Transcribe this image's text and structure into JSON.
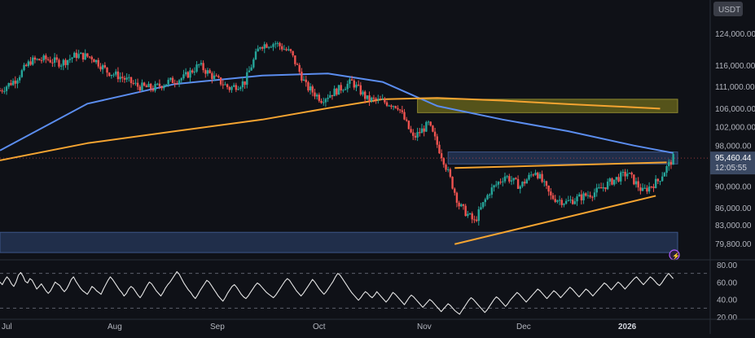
{
  "currency_label": "USDT",
  "colors": {
    "background": "#0f1117",
    "up": "#26a69a",
    "down": "#ef5350",
    "ma_fast": "#5b8def",
    "ma_slow": "#f5a431",
    "trendline": "#f5a431",
    "zone_blue": "#2a3f66",
    "zone_yellow": "#6e6a1c",
    "rsi_line": "#e6e6e6",
    "text": "#b2b5be",
    "badge_bg": "#3a3d47"
  },
  "chart_data": [
    {
      "type": "candlestick",
      "title": "",
      "x_labels": [
        "Jul",
        "Aug",
        "Sep",
        "Oct",
        "Nov",
        "Dec",
        "2026"
      ],
      "y_ticks": [
        "124,000.00",
        "116,000.00",
        "111,000.00",
        "106,000.00",
        "102,000.00",
        "98,000.00",
        "90,000.00",
        "86,000.00",
        "83,000.00",
        "79,800.00"
      ],
      "y_tick_values": [
        124000,
        116000,
        111000,
        106000,
        102000,
        98000,
        90000,
        86000,
        83000,
        79800
      ],
      "y_scale": "log",
      "current_price_label": "95,460.44",
      "current_price": 95460.44,
      "countdown_label": "12:05:55",
      "approx_close_path": [
        [
          0,
          110000
        ],
        [
          7,
          112500
        ],
        [
          14,
          117000
        ],
        [
          21,
          117500
        ],
        [
          28,
          116500
        ],
        [
          35,
          118500
        ],
        [
          42,
          118000
        ],
        [
          49,
          114500
        ],
        [
          56,
          113000
        ],
        [
          63,
          111000
        ],
        [
          70,
          110500
        ],
        [
          77,
          112000
        ],
        [
          84,
          113000
        ],
        [
          91,
          116000
        ],
        [
          98,
          113000
        ],
        [
          105,
          110500
        ],
        [
          112,
          112000
        ],
        [
          119,
          121000
        ],
        [
          126,
          121500
        ],
        [
          133,
          119000
        ],
        [
          140,
          111000
        ],
        [
          147,
          108000
        ],
        [
          154,
          110000
        ],
        [
          161,
          112000
        ],
        [
          168,
          108000
        ],
        [
          175,
          107500
        ],
        [
          182,
          106500
        ],
        [
          189,
          99500
        ],
        [
          196,
          102500
        ],
        [
          203,
          95000
        ],
        [
          210,
          86500
        ],
        [
          217,
          83500
        ],
        [
          224,
          89000
        ],
        [
          231,
          92000
        ],
        [
          238,
          90000
        ],
        [
          245,
          93000
        ],
        [
          252,
          88000
        ],
        [
          259,
          87000
        ],
        [
          266,
          88000
        ],
        [
          273,
          89000
        ],
        [
          280,
          91000
        ],
        [
          287,
          92500
        ],
        [
          294,
          89000
        ],
        [
          301,
          91000
        ],
        [
          308,
          95460
        ]
      ],
      "moving_averages": [
        {
          "period_role": "fast",
          "approx": [
            [
              0,
              97000
            ],
            [
              40,
              107000
            ],
            [
              80,
              111500
            ],
            [
              120,
              113500
            ],
            [
              150,
              114000
            ],
            [
              175,
              112000
            ],
            [
              200,
              106500
            ],
            [
              230,
              103500
            ],
            [
              260,
              101000
            ],
            [
              290,
              98000
            ],
            [
              308,
              96500
            ]
          ]
        },
        {
          "period_role": "slow",
          "approx": [
            [
              0,
              95000
            ],
            [
              40,
              98500
            ],
            [
              80,
              101000
            ],
            [
              120,
              103500
            ],
            [
              150,
              106000
            ],
            [
              175,
              108000
            ],
            [
              200,
              108300
            ],
            [
              230,
              107700
            ],
            [
              260,
              106900
            ],
            [
              290,
              106200
            ],
            [
              302,
              105900
            ]
          ]
        }
      ],
      "zones": [
        {
          "y_from": 105000,
          "y_to": 108000,
          "x_from": 191,
          "x_to": 310,
          "color": "yellow"
        },
        {
          "y_from": 94300,
          "y_to": 96700,
          "x_from": 205,
          "x_to": 310,
          "color": "blue"
        },
        {
          "y_from": 78300,
          "y_to": 81700,
          "x_from": 0,
          "x_to": 310,
          "color": "blue"
        }
      ],
      "trendlines": [
        {
          "from": [
            208,
            93500
          ],
          "to": [
            305,
            94600
          ]
        },
        {
          "from": [
            208,
            79700
          ],
          "to": [
            300,
            88200
          ]
        }
      ]
    },
    {
      "type": "line",
      "title": "",
      "y_ticks": [
        "80.00",
        "60.00",
        "40.00",
        "20.00"
      ],
      "y_tick_values": [
        80,
        60,
        40,
        20
      ],
      "reference_lines": [
        70,
        30
      ],
      "values": [
        60,
        57,
        62,
        66,
        63,
        58,
        55,
        60,
        68,
        71,
        67,
        61,
        59,
        64,
        62,
        57,
        52,
        55,
        58,
        54,
        50,
        47,
        50,
        55,
        60,
        58,
        56,
        52,
        49,
        52,
        57,
        63,
        66,
        61,
        57,
        53,
        50,
        48,
        46,
        50,
        55,
        53,
        50,
        48,
        46,
        52,
        57,
        62,
        66,
        63,
        59,
        55,
        51,
        48,
        44,
        47,
        52,
        55,
        53,
        49,
        45,
        42,
        46,
        51,
        56,
        60,
        58,
        54,
        50,
        47,
        44,
        48,
        53,
        57,
        60,
        64,
        68,
        72,
        69,
        64,
        59,
        55,
        51,
        48,
        44,
        41,
        45,
        50,
        54,
        58,
        62,
        60,
        56,
        52,
        48,
        44,
        41,
        38,
        42,
        47,
        51,
        55,
        57,
        54,
        50,
        46,
        43,
        41,
        44,
        48,
        52,
        56,
        59,
        57,
        54,
        51,
        48,
        46,
        44,
        42,
        45,
        49,
        53,
        57,
        61,
        64,
        62,
        58,
        54,
        50,
        47,
        44,
        47,
        51,
        55,
        59,
        63,
        60,
        56,
        52,
        49,
        46,
        49,
        53,
        57,
        61,
        66,
        70,
        68,
        64,
        60,
        56,
        52,
        48,
        45,
        42,
        39,
        42,
        46,
        49,
        47,
        44,
        42,
        45,
        49,
        46,
        43,
        40,
        37,
        40,
        44,
        48,
        46,
        43,
        40,
        37,
        34,
        38,
        42,
        45,
        43,
        40,
        37,
        34,
        31,
        34,
        37,
        40,
        38,
        35,
        32,
        29,
        26,
        29,
        32,
        35,
        33,
        30,
        27,
        25,
        23,
        27,
        31,
        35,
        39,
        42,
        40,
        37,
        34,
        31,
        28,
        25,
        28,
        32,
        36,
        40,
        43,
        41,
        38,
        35,
        32,
        35,
        39,
        42,
        45,
        48,
        46,
        43,
        40,
        37,
        40,
        43,
        46,
        49,
        52,
        50,
        47,
        44,
        41,
        44,
        47,
        50,
        48,
        45,
        42,
        45,
        48,
        51,
        54,
        52,
        49,
        46,
        43,
        46,
        49,
        52,
        50,
        47,
        44,
        47,
        50,
        53,
        56,
        59,
        57,
        54,
        51,
        54,
        57,
        60,
        58,
        55,
        52,
        55,
        58,
        61,
        64,
        66,
        63,
        60,
        57,
        60,
        63,
        66,
        64,
        61,
        58,
        56,
        59,
        63,
        67,
        70,
        67,
        64
      ]
    }
  ]
}
